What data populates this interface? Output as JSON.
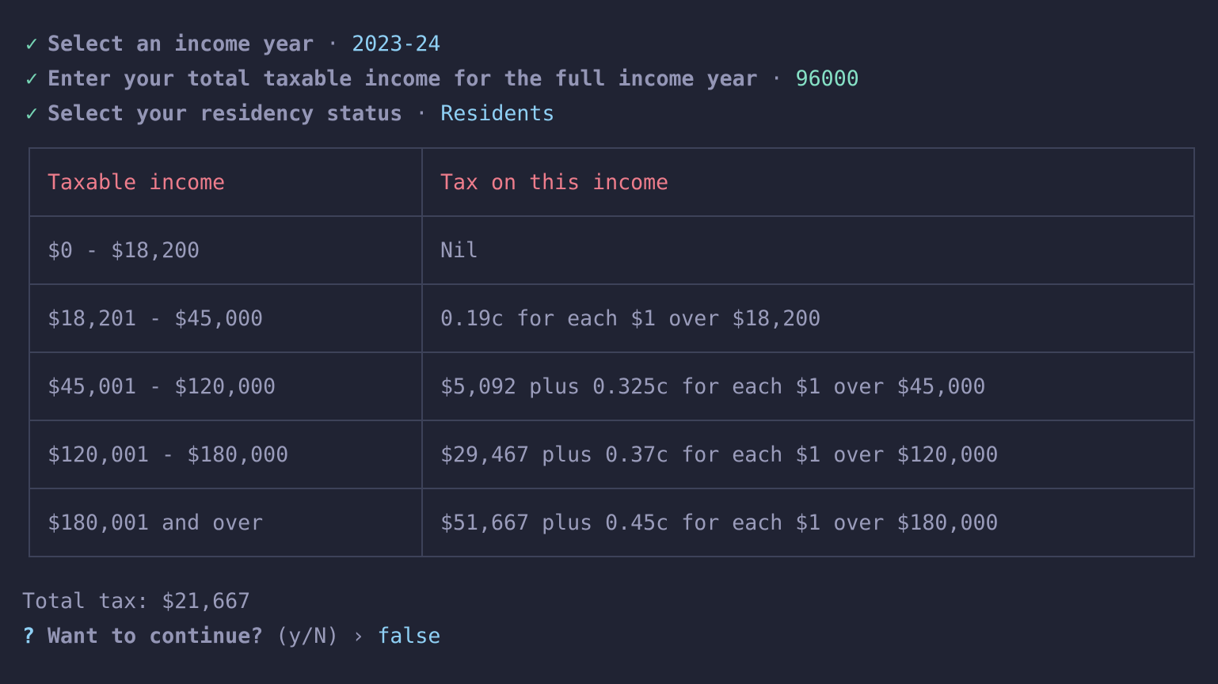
{
  "prompts": [
    {
      "question": "Select an income year",
      "separator": "·",
      "answer": "2023-24"
    },
    {
      "question": "Enter your total taxable income for the full income year",
      "separator": "·",
      "answer": "96000"
    },
    {
      "question": "Select your residency status",
      "separator": "·",
      "answer": "Residents"
    }
  ],
  "table": {
    "headers": [
      "Taxable income",
      "Tax on this income"
    ],
    "rows": [
      [
        "$0 - $18,200",
        "Nil"
      ],
      [
        "$18,201 - $45,000",
        "0.19c for each $1 over $18,200"
      ],
      [
        "$45,001 - $120,000",
        "$5,092 plus 0.325c for each $1 over $45,000"
      ],
      [
        "$120,001 - $180,000",
        "$29,467 plus 0.37c for each $1 over $120,000"
      ],
      [
        "$180,001 and over",
        "$51,667 plus 0.45c for each $1 over $180,000"
      ]
    ]
  },
  "total": "Total tax: $21,667",
  "confirm": {
    "mark": "?",
    "question": "Want to continue?",
    "hint": "(y/N)",
    "arrow": "›",
    "answer": "false"
  },
  "colors": {
    "background": "#202333",
    "check": "#76d4b4",
    "answer": "#8fd0f5",
    "header": "#ee7d8c"
  }
}
